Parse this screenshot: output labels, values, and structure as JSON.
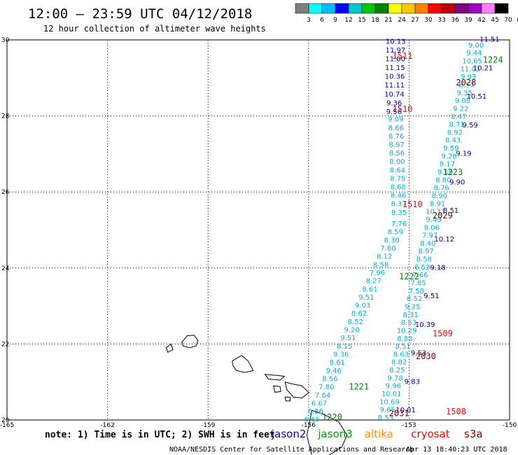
{
  "title": "12:00 – 23:59 UTC 04/12/2018",
  "subtitle": "12 hour collection of altimeter wave heights",
  "colorbar": {
    "colors": [
      "#808080",
      "#00ffff",
      "#00bfff",
      "#0000ff",
      "#00c8c8",
      "#00c800",
      "#008000",
      "#ffff00",
      "#ffc800",
      "#ff8000",
      "#ff0000",
      "#c00000",
      "#800080",
      "#a000c0",
      "#ff80ff",
      "#000000"
    ],
    "labels": [
      "3",
      "6",
      "9",
      "12",
      "15",
      "18",
      "21",
      "24",
      "27",
      "30",
      "33",
      "36",
      "39",
      "42",
      "45",
      "70",
      "(ft)"
    ]
  },
  "axes": {
    "x_ticks": [
      "-165",
      "-162",
      "-159",
      "-156",
      "-153",
      "-150"
    ],
    "y_ticks": [
      "20",
      "22",
      "24",
      "26",
      "28",
      "30"
    ]
  },
  "note": "note: 1) Time is in UTC; 2) SWH is in feet",
  "legend": [
    {
      "name": "jason2",
      "color": "#0000d0"
    },
    {
      "name": "jason3",
      "color": "#00a000"
    },
    {
      "name": "altika",
      "color": "#ff8c00"
    },
    {
      "name": "cryosat",
      "color": "#ff0000"
    },
    {
      "name": "s3a",
      "color": "#800000"
    }
  ],
  "footer": "NOAA/NESDIS Center for Satellite Applications and Research",
  "timestamp": "Apr 13 18:40:23 UTC 2018",
  "pass_labels": [
    {
      "text": "1511",
      "lon": -153.5,
      "lat": 29.5,
      "color": "#ff0000"
    },
    {
      "text": "1510",
      "lon": -153.5,
      "lat": 28.1,
      "color": "#ff0000"
    },
    {
      "text": "1510",
      "lon": -153.2,
      "lat": 25.6,
      "color": "#ff0000"
    },
    {
      "text": "1509",
      "lon": -152.3,
      "lat": 22.2,
      "color": "#ff0000"
    },
    {
      "text": "1508",
      "lon": -151.9,
      "lat": 20.15,
      "color": "#ff0000"
    },
    {
      "text": "1224",
      "lon": -150.8,
      "lat": 29.4,
      "color": "#008000"
    },
    {
      "text": "1223",
      "lon": -152.0,
      "lat": 26.45,
      "color": "#008000"
    },
    {
      "text": "1222",
      "lon": -153.3,
      "lat": 23.7,
      "color": "#008000"
    },
    {
      "text": "1221",
      "lon": -154.8,
      "lat": 20.8,
      "color": "#008000"
    },
    {
      "text": "1220",
      "lon": -155.6,
      "lat": 20.0,
      "color": "#008000"
    },
    {
      "text": "2028",
      "lon": -151.6,
      "lat": 28.8,
      "color": "#800000"
    },
    {
      "text": "2029",
      "lon": -152.3,
      "lat": 25.3,
      "color": "#800000"
    },
    {
      "text": "2030",
      "lon": -152.8,
      "lat": 21.6,
      "color": "#800000"
    },
    {
      "text": "2031",
      "lon": -153.6,
      "lat": 20.1,
      "color": "#800000"
    }
  ],
  "tracks": [
    {
      "name": "jason2-descending",
      "color": "#0000b0",
      "lon_start": -153.4,
      "lat_start": 29.9,
      "lon_end": -153.45,
      "lat_end": 28.05,
      "values": [
        "10.13",
        "11.97",
        "11.00",
        "11.15",
        "10.36",
        "11.11",
        "10.74",
        "9.36",
        "9.56"
      ]
    },
    {
      "name": "jason2-cyan-column",
      "color": "#00b0d8",
      "lon_start": -153.4,
      "lat_start": 27.85,
      "lon_end": -153.3,
      "lat_end": 25.4,
      "values": [
        "9.09",
        "8.66",
        "8.76",
        "8.97",
        "8.56",
        "8.00",
        "8.64",
        "8.75",
        "8.68",
        "8.46",
        "8.37",
        "8.35"
      ]
    },
    {
      "name": "jason2-lower",
      "color": "#00b0d8",
      "lon_start": -153.3,
      "lat_start": 25.1,
      "lon_end": -155.9,
      "lat_end": 19.95,
      "values": [
        "7.76",
        "8.59",
        "8.30",
        "7.80",
        "8.12",
        "8.58",
        "7.96",
        "8.27",
        "8.61",
        "9.51",
        "9.03",
        "8.62",
        "8.52",
        "9.20",
        "9.51",
        "8.15",
        "9.36",
        "8.61",
        "9.46",
        "8.56",
        "7.80",
        "7.64",
        "6.67",
        "6.86",
        "6.65"
      ]
    },
    {
      "name": "jason3-track",
      "color": "#00b0d8",
      "lon_start": -151.0,
      "lat_start": 29.8,
      "lon_end": -153.7,
      "lat_end": 20.0,
      "values": [
        "9.00",
        "9.44",
        "10.65",
        "11.01",
        "9.93",
        "8.53",
        "9.35",
        "9.08",
        "9.22",
        "8.47",
        "8.71",
        "8.92",
        "8.43",
        "9.59",
        "9.28",
        "8.17",
        "9.19",
        "8.80",
        "8.76",
        "8.90",
        "8.91",
        "10.11",
        "9.49",
        "8.06",
        "7.97",
        "8.40",
        "8.97",
        "8.58",
        "6.53",
        "7.66",
        "7.85",
        "7.58",
        "8.52",
        "9.25",
        "8.31",
        "8.53",
        "10.29",
        "8.83",
        "8.51",
        "8.63",
        "8.82",
        "8.25",
        "9.78",
        "9.96",
        "10.01",
        "10.69",
        "9.65",
        "8.53"
      ]
    },
    {
      "name": "s3a-track",
      "color": "#00008b",
      "lon_start": -150.6,
      "lat_start": 29.95,
      "lon_end": -153.1,
      "lat_end": 20.2,
      "values": [
        "11.51",
        "10.21",
        "10.51",
        "9.59",
        "9.19",
        "9.90",
        "8.51",
        "10.12",
        "9.18",
        "9.51",
        "10.39",
        "9.53",
        "9.83",
        "10.01"
      ]
    }
  ],
  "coast_islands": [
    {
      "name": "kauai",
      "pts": [
        [
          -159.78,
          22.05
        ],
        [
          -159.62,
          22.22
        ],
        [
          -159.42,
          22.23
        ],
        [
          -159.3,
          22.1
        ],
        [
          -159.35,
          21.95
        ],
        [
          -159.55,
          21.9
        ],
        [
          -159.75,
          21.95
        ]
      ]
    },
    {
      "name": "niihau",
      "pts": [
        [
          -160.25,
          21.9
        ],
        [
          -160.1,
          22.0
        ],
        [
          -160.05,
          21.85
        ],
        [
          -160.2,
          21.78
        ]
      ]
    },
    {
      "name": "oahu",
      "pts": [
        [
          -158.28,
          21.55
        ],
        [
          -158.0,
          21.7
        ],
        [
          -157.8,
          21.55
        ],
        [
          -157.65,
          21.3
        ],
        [
          -157.9,
          21.25
        ],
        [
          -158.15,
          21.3
        ],
        [
          -158.25,
          21.42
        ]
      ]
    },
    {
      "name": "molokai",
      "pts": [
        [
          -157.3,
          21.2
        ],
        [
          -156.9,
          21.17
        ],
        [
          -156.72,
          21.15
        ],
        [
          -156.85,
          21.05
        ],
        [
          -157.2,
          21.08
        ]
      ]
    },
    {
      "name": "lanai",
      "pts": [
        [
          -157.05,
          20.9
        ],
        [
          -156.85,
          20.88
        ],
        [
          -156.83,
          20.75
        ],
        [
          -157.0,
          20.73
        ]
      ]
    },
    {
      "name": "maui",
      "pts": [
        [
          -156.7,
          21.0
        ],
        [
          -156.5,
          20.95
        ],
        [
          -156.2,
          20.9
        ],
        [
          -155.99,
          20.72
        ],
        [
          -156.2,
          20.58
        ],
        [
          -156.45,
          20.6
        ],
        [
          -156.65,
          20.8
        ]
      ]
    },
    {
      "name": "kahoolawe",
      "pts": [
        [
          -156.7,
          20.6
        ],
        [
          -156.55,
          20.6
        ],
        [
          -156.55,
          20.5
        ],
        [
          -156.68,
          20.5
        ]
      ]
    },
    {
      "name": "hawaii",
      "pts": [
        [
          -155.9,
          20.25
        ],
        [
          -155.55,
          20.15
        ],
        [
          -155.1,
          19.95
        ],
        [
          -154.85,
          19.6
        ],
        [
          -155.0,
          19.3
        ],
        [
          -155.6,
          18.95
        ],
        [
          -155.9,
          19.05
        ],
        [
          -156.05,
          19.6
        ]
      ]
    }
  ]
}
